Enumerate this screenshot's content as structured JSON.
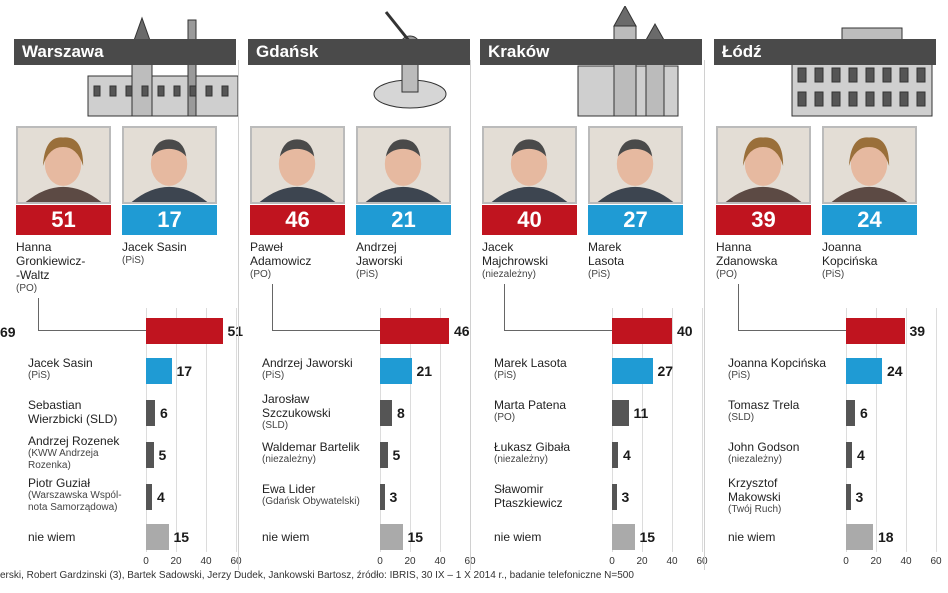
{
  "edge_left_value": "69",
  "footer": "erski, Robert Gardzinski (3), Bartek Sadowski, Jerzy Dudek, Jankowski Bartosz, źródło: IBRIS, 30 IX – 1 X 2014 r., badanie telefoniczne N=500",
  "chart_data": [
    {
      "type": "bar",
      "city": "Warszawa",
      "leaders": [
        {
          "name_lines": [
            "Hanna",
            "Gronkiewicz-",
            "-Waltz"
          ],
          "party": "(PO)",
          "score": "51",
          "color": "#c0141f"
        },
        {
          "name_lines": [
            "Jacek Sasin"
          ],
          "party": "(PiS)",
          "score": "17",
          "color": "#1f9bd4"
        }
      ],
      "rows": [
        {
          "name_lines": [],
          "party_lines": [],
          "value": 51,
          "label": "51",
          "color": "#c0141f"
        },
        {
          "name_lines": [
            "Jacek Sasin"
          ],
          "party_lines": [
            "(PiS)"
          ],
          "value": 17,
          "label": "17",
          "color": "#1f9bd4"
        },
        {
          "name_lines": [
            "Sebastian",
            "Wierzbicki (SLD)"
          ],
          "party_lines": [],
          "value": 6,
          "label": "6",
          "color": "#555555"
        },
        {
          "name_lines": [
            "Andrzej Rozenek"
          ],
          "party_lines": [
            "(KWW Andrzeja",
            "Rozenka)"
          ],
          "value": 5,
          "label": "5",
          "color": "#555555"
        },
        {
          "name_lines": [
            "Piotr Guział"
          ],
          "party_lines": [
            "(Warszawska Wspól-",
            "nota Samorządowa)"
          ],
          "value": 4,
          "label": "4",
          "color": "#555555"
        },
        {
          "name_lines": [
            "nie wiem"
          ],
          "party_lines": [],
          "value": 15,
          "label": "15",
          "color": "#aaaaaa"
        }
      ],
      "ticks": [
        "0",
        "20",
        "40",
        "60"
      ],
      "xlim": [
        0,
        60
      ]
    },
    {
      "type": "bar",
      "city": "Gdańsk",
      "leaders": [
        {
          "name_lines": [
            "Paweł",
            "Adamowicz"
          ],
          "party": "(PO)",
          "score": "46",
          "color": "#c0141f"
        },
        {
          "name_lines": [
            "Andrzej",
            "Jaworski"
          ],
          "party": "(PiS)",
          "score": "21",
          "color": "#1f9bd4"
        }
      ],
      "rows": [
        {
          "name_lines": [],
          "party_lines": [],
          "value": 46,
          "label": "46",
          "color": "#c0141f"
        },
        {
          "name_lines": [
            "Andrzej Jaworski"
          ],
          "party_lines": [
            "(PiS)"
          ],
          "value": 21,
          "label": "21",
          "color": "#1f9bd4"
        },
        {
          "name_lines": [
            "Jarosław",
            "Szczukowski"
          ],
          "party_lines": [
            "(SLD)"
          ],
          "value": 8,
          "label": "8",
          "color": "#555555"
        },
        {
          "name_lines": [
            "Waldemar Bartelik"
          ],
          "party_lines": [
            "(niezależny)"
          ],
          "value": 5,
          "label": "5",
          "color": "#555555"
        },
        {
          "name_lines": [
            "Ewa Lider"
          ],
          "party_lines": [
            "(Gdańsk Obywatelski)"
          ],
          "value": 3,
          "label": "3",
          "color": "#555555"
        },
        {
          "name_lines": [
            "nie wiem"
          ],
          "party_lines": [],
          "value": 15,
          "label": "15",
          "color": "#aaaaaa"
        }
      ],
      "ticks": [
        "0",
        "20",
        "40",
        "60"
      ],
      "xlim": [
        0,
        60
      ]
    },
    {
      "type": "bar",
      "city": "Kraków",
      "leaders": [
        {
          "name_lines": [
            "Jacek",
            "Majchrowski"
          ],
          "party": "(niezależny)",
          "score": "40",
          "color": "#c0141f"
        },
        {
          "name_lines": [
            "Marek",
            "Lasota"
          ],
          "party": "(PiS)",
          "score": "27",
          "color": "#1f9bd4"
        }
      ],
      "rows": [
        {
          "name_lines": [],
          "party_lines": [],
          "value": 40,
          "label": "40",
          "color": "#c0141f"
        },
        {
          "name_lines": [
            "Marek Lasota"
          ],
          "party_lines": [
            "(PiS)"
          ],
          "value": 27,
          "label": "27",
          "color": "#1f9bd4"
        },
        {
          "name_lines": [
            "Marta Patena"
          ],
          "party_lines": [
            "(PO)"
          ],
          "value": 11,
          "label": "11",
          "color": "#555555"
        },
        {
          "name_lines": [
            "Łukasz Gibała"
          ],
          "party_lines": [
            "(niezależny)"
          ],
          "value": 4,
          "label": "4",
          "color": "#555555"
        },
        {
          "name_lines": [
            "Sławomir",
            "Ptaszkiewicz"
          ],
          "party_lines": [],
          "value": 3,
          "label": "3",
          "color": "#555555"
        },
        {
          "name_lines": [
            "nie wiem"
          ],
          "party_lines": [],
          "value": 15,
          "label": "15",
          "color": "#aaaaaa"
        }
      ],
      "ticks": [
        "0",
        "20",
        "40",
        "60"
      ],
      "xlim": [
        0,
        60
      ]
    },
    {
      "type": "bar",
      "city": "Łódź",
      "leaders": [
        {
          "name_lines": [
            "Hanna",
            "Zdanowska"
          ],
          "party": "(PO)",
          "score": "39",
          "color": "#c0141f"
        },
        {
          "name_lines": [
            "Joanna",
            "Kopcińska"
          ],
          "party": "(PiS)",
          "score": "24",
          "color": "#1f9bd4"
        }
      ],
      "rows": [
        {
          "name_lines": [],
          "party_lines": [],
          "value": 39,
          "label": "39",
          "color": "#c0141f"
        },
        {
          "name_lines": [
            "Joanna Kopcińska"
          ],
          "party_lines": [
            "(PiS)"
          ],
          "value": 24,
          "label": "24",
          "color": "#1f9bd4"
        },
        {
          "name_lines": [
            "Tomasz Trela"
          ],
          "party_lines": [
            "(SLD)"
          ],
          "value": 6,
          "label": "6",
          "color": "#555555"
        },
        {
          "name_lines": [
            "John Godson"
          ],
          "party_lines": [
            "(niezależny)"
          ],
          "value": 4,
          "label": "4",
          "color": "#555555"
        },
        {
          "name_lines": [
            "Krzysztof",
            "Makowski"
          ],
          "party_lines": [
            "(Twój Ruch)"
          ],
          "value": 3,
          "label": "3",
          "color": "#555555"
        },
        {
          "name_lines": [
            "nie wiem"
          ],
          "party_lines": [],
          "value": 18,
          "label": "18",
          "color": "#aaaaaa"
        }
      ],
      "ticks": [
        "0",
        "20",
        "40",
        "60"
      ],
      "xlim": [
        0,
        60
      ]
    }
  ]
}
